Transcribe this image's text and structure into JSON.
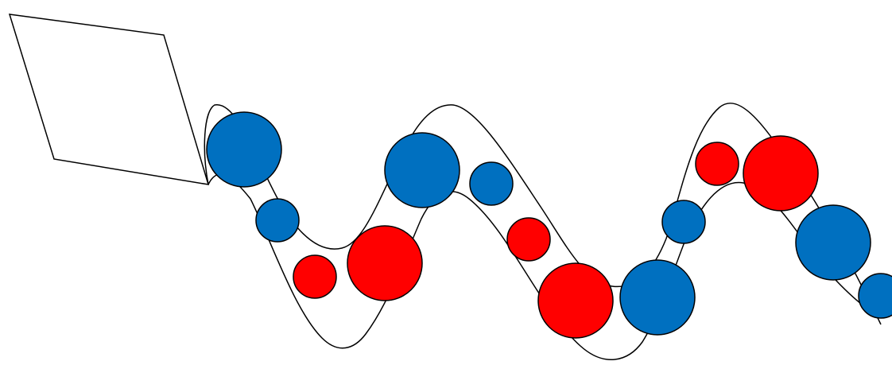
{
  "diagram": {
    "colors": {
      "blue": "#0070C0",
      "red": "#FF0000",
      "outline": "#000000",
      "background": "#FFFFFF"
    },
    "shapes": {
      "parallelogram": {
        "fill": "none"
      },
      "wave_band": {
        "fill": "none"
      }
    },
    "beads": [
      {
        "id": "bead-1",
        "color": "blue",
        "size": "large"
      },
      {
        "id": "bead-2",
        "color": "blue",
        "size": "small"
      },
      {
        "id": "bead-3",
        "color": "red",
        "size": "small"
      },
      {
        "id": "bead-4",
        "color": "red",
        "size": "large"
      },
      {
        "id": "bead-5",
        "color": "blue",
        "size": "large"
      },
      {
        "id": "bead-6",
        "color": "blue",
        "size": "small"
      },
      {
        "id": "bead-7",
        "color": "red",
        "size": "small"
      },
      {
        "id": "bead-8",
        "color": "red",
        "size": "large"
      },
      {
        "id": "bead-9",
        "color": "blue",
        "size": "large"
      },
      {
        "id": "bead-10",
        "color": "blue",
        "size": "small"
      },
      {
        "id": "bead-11",
        "color": "red",
        "size": "small"
      },
      {
        "id": "bead-12",
        "color": "red",
        "size": "large"
      },
      {
        "id": "bead-13",
        "color": "blue",
        "size": "large"
      },
      {
        "id": "bead-14",
        "color": "blue",
        "size": "small"
      }
    ]
  }
}
